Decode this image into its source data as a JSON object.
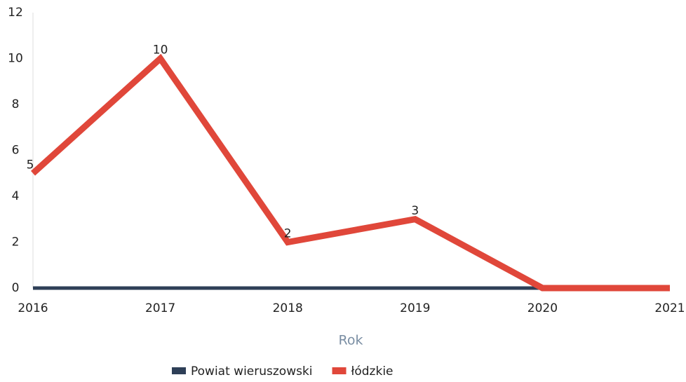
{
  "chart_data": {
    "type": "line",
    "x_label": "Rok",
    "x": [
      2016,
      2017,
      2018,
      2019,
      2020,
      2021
    ],
    "xlim": [
      2016,
      2021
    ],
    "xticks": [
      2016,
      2017,
      2018,
      2019,
      2020,
      2021
    ],
    "ylim": [
      0,
      12
    ],
    "yticks": [
      0,
      2,
      4,
      6,
      8,
      10,
      12
    ],
    "grid": false,
    "legend": "bottom",
    "series": [
      {
        "name": "Powiat wieruszowski",
        "color": "#2e3f57",
        "values": [
          0,
          0,
          0,
          0,
          0,
          null
        ]
      },
      {
        "name": "łódzkie",
        "color": "#e0473a",
        "values": [
          5,
          10,
          2,
          3,
          0,
          0
        ],
        "value_labels": [
          "5",
          "10",
          "2",
          "3",
          null,
          null
        ]
      }
    ]
  }
}
